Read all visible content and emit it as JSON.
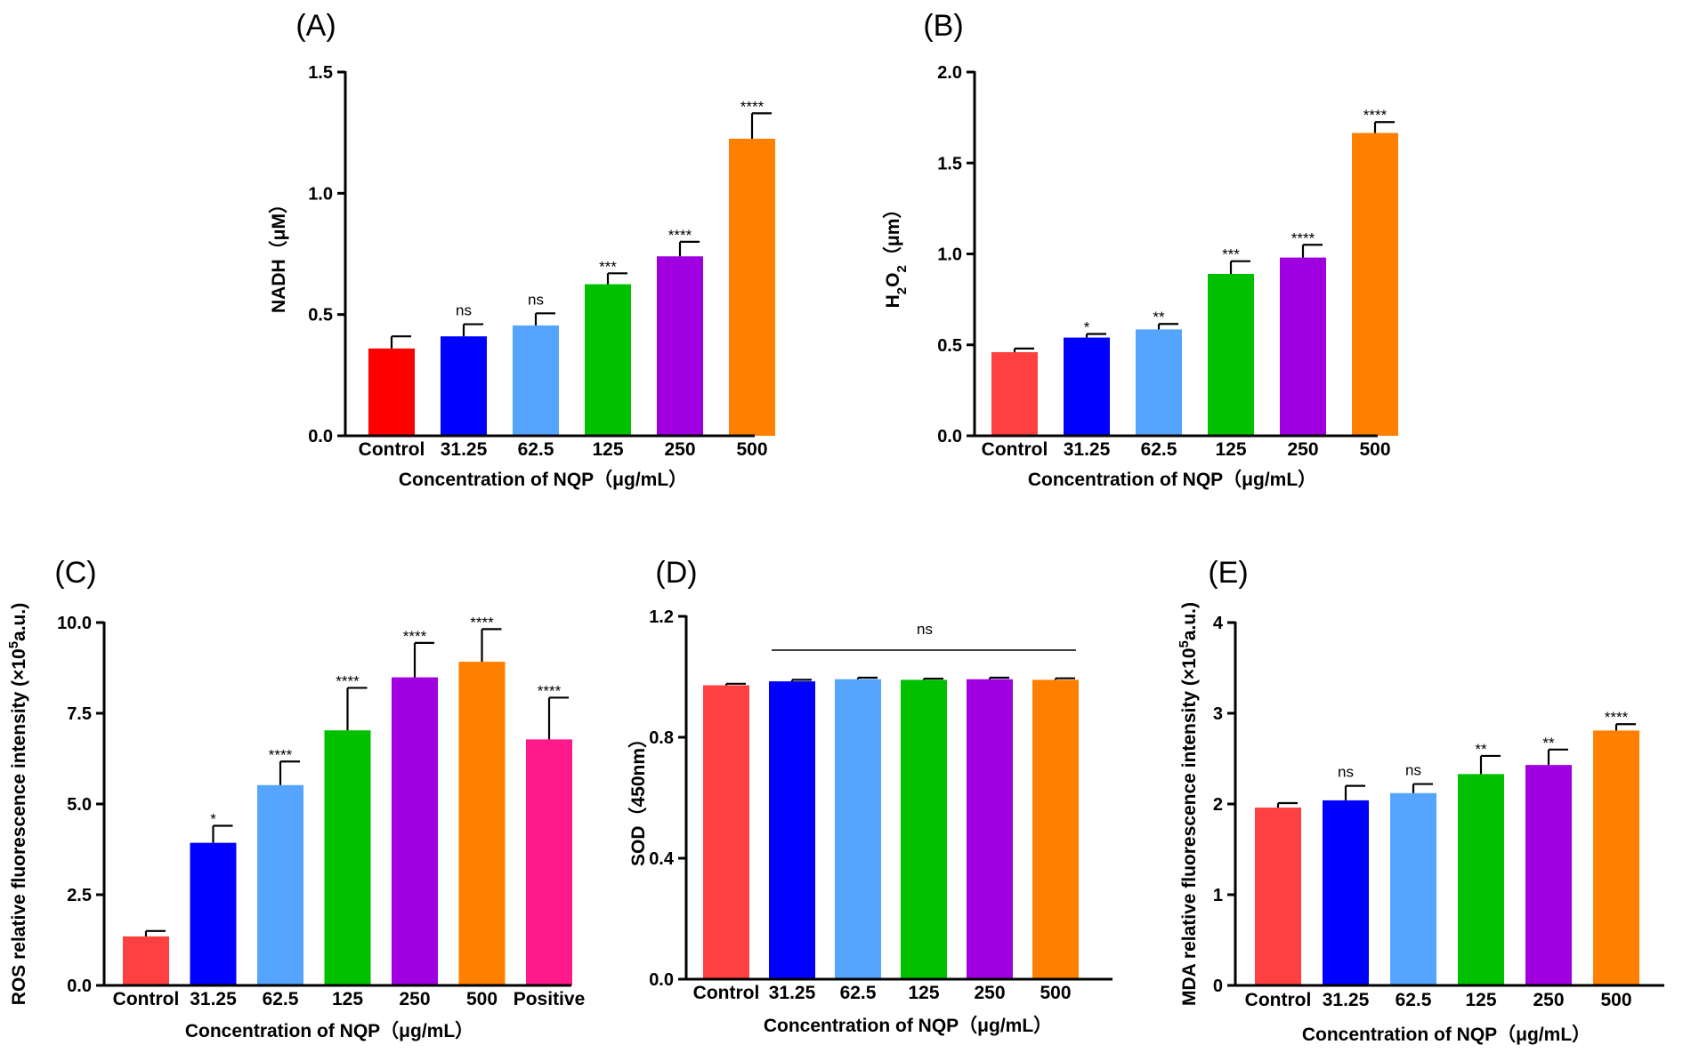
{
  "chart_data": [
    {
      "type": "bar",
      "panel": "(A)",
      "categories": [
        "Control",
        "31.25",
        "62.5",
        "125",
        "250",
        "500"
      ],
      "values": [
        0.36,
        0.41,
        0.455,
        0.625,
        0.74,
        1.225
      ],
      "errors": [
        0.05,
        0.05,
        0.05,
        0.045,
        0.06,
        0.105
      ],
      "significance": [
        "",
        "ns",
        "ns",
        "***",
        "****",
        "****"
      ],
      "colors": [
        "#ff0000",
        "#0000ff",
        "#55a5ff",
        "#00c000",
        "#a000e0",
        "#ff8000"
      ],
      "ylabel": "NADH（μM）",
      "xlabel": "Concentration of NQP（μg/mL）",
      "ylim": [
        0,
        1.5
      ],
      "yticks": [
        "0.0",
        "0.5",
        "1.0",
        "1.5"
      ],
      "ytick_values": [
        0,
        0.5,
        1.0,
        1.5
      ]
    },
    {
      "type": "bar",
      "panel": "(B)",
      "categories": [
        "Control",
        "31.25",
        "62.5",
        "125",
        "250",
        "500"
      ],
      "values": [
        0.46,
        0.54,
        0.585,
        0.89,
        0.98,
        1.665
      ],
      "errors": [
        0.02,
        0.02,
        0.03,
        0.07,
        0.07,
        0.06
      ],
      "significance": [
        "",
        "*",
        "**",
        "***",
        "****",
        "****"
      ],
      "colors": [
        "#ff4040",
        "#0000ff",
        "#55a5ff",
        "#00c000",
        "#a000e0",
        "#ff8000"
      ],
      "ylabel_main": "H",
      "ylabel_sub": "2",
      "ylabel_mid": "O",
      "ylabel_sub2": "2",
      "ylabel_end": "（μm）",
      "xlabel": "Concentration of NQP（μg/mL）",
      "ylim": [
        0,
        2.0
      ],
      "yticks": [
        "0.0",
        "0.5",
        "1.0",
        "1.5",
        "2.0"
      ],
      "ytick_values": [
        0,
        0.5,
        1.0,
        1.5,
        2.0
      ]
    },
    {
      "type": "bar",
      "panel": "(C)",
      "categories": [
        "Control",
        "31.25",
        "62.5",
        "125",
        "250",
        "500",
        "Positive"
      ],
      "values": [
        1.35,
        3.93,
        5.52,
        7.03,
        8.49,
        8.92,
        6.78
      ],
      "errors": [
        0.15,
        0.47,
        0.65,
        1.17,
        0.95,
        0.9,
        1.15
      ],
      "significance": [
        "",
        "*",
        "****",
        "****",
        "****",
        "****",
        "****"
      ],
      "colors": [
        "#ff4040",
        "#0000ff",
        "#55a5ff",
        "#00c000",
        "#a000e0",
        "#ff8000",
        "#ff1a8c"
      ],
      "ylabel_main": "ROS relative fluorescence intensity (×10",
      "ylabel_sup": "5",
      "ylabel_end": "a.u.)",
      "xlabel": "Concentration of NQP（μg/mL）",
      "ylim": [
        0,
        10
      ],
      "yticks": [
        "0.0",
        "2.5",
        "5.0",
        "7.5",
        "10.0"
      ],
      "ytick_values": [
        0,
        2.5,
        5.0,
        7.5,
        10.0
      ]
    },
    {
      "type": "bar",
      "panel": "(D)",
      "categories": [
        "Control",
        "31.25",
        "62.5",
        "125",
        "250",
        "500"
      ],
      "values": [
        0.972,
        0.985,
        0.992,
        0.99,
        0.992,
        0.99
      ],
      "errors": [
        0.005,
        0.005,
        0.005,
        0.004,
        0.005,
        0.005
      ],
      "significance_line": "ns",
      "colors": [
        "#ff4040",
        "#0000ff",
        "#55a5ff",
        "#00c000",
        "#a000e0",
        "#ff8000"
      ],
      "ylabel": "SOD（450nm）",
      "xlabel": "Concentration of NQP（μg/mL）",
      "ylim": [
        0,
        1.2
      ],
      "yticks": [
        "0.0",
        "0.4",
        "0.8",
        "1.2"
      ],
      "ytick_values": [
        0,
        0.4,
        0.8,
        1.2
      ]
    },
    {
      "type": "bar",
      "panel": "(E)",
      "categories": [
        "Control",
        "31.25",
        "62.5",
        "125",
        "250",
        "500"
      ],
      "values": [
        1.96,
        2.04,
        2.12,
        2.33,
        2.43,
        2.81
      ],
      "errors": [
        0.05,
        0.16,
        0.1,
        0.2,
        0.17,
        0.07
      ],
      "significance": [
        "",
        "ns",
        "ns",
        "**",
        "**",
        "****"
      ],
      "colors": [
        "#ff4040",
        "#0000ff",
        "#55a5ff",
        "#00c000",
        "#a000e0",
        "#ff8000"
      ],
      "ylabel_main": "MDA relative fluorescence intensity (×10",
      "ylabel_sup": "5",
      "ylabel_end": "a.u.)",
      "xlabel": "Concentration of NQP（μg/mL）",
      "ylim": [
        0,
        4
      ],
      "yticks": [
        "0",
        "1",
        "2",
        "3",
        "4"
      ],
      "ytick_values": [
        0,
        1,
        2,
        3,
        4
      ]
    }
  ]
}
